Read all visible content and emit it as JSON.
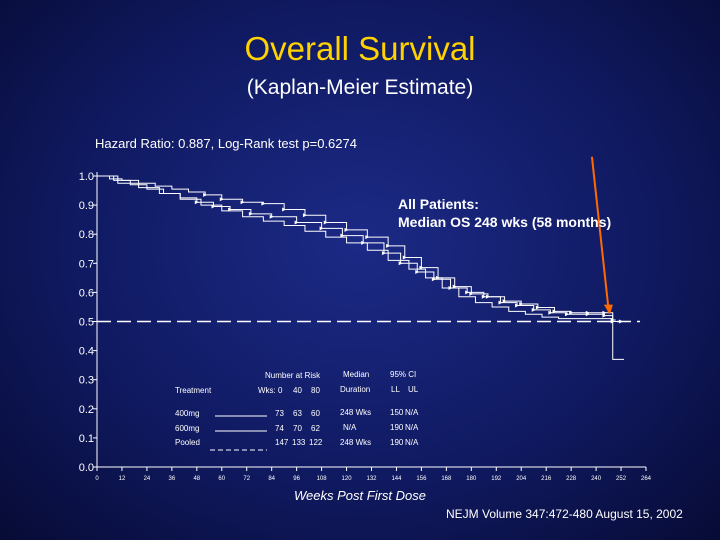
{
  "title": "Overall Survival",
  "subtitle": "(Kaplan-Meier Estimate)",
  "hazard_text": "Hazard Ratio: 0.887, Log-Rank test p=0.6274",
  "annotation": {
    "line1": "All Patients:",
    "line2": "Median OS 248 wks (58 months)"
  },
  "citation": "NEJM Volume 347:472-480 August 15, 2002",
  "colors": {
    "title": "#ffd200",
    "arrow": "#ff6a00",
    "lines": "#ffffff"
  },
  "table": {
    "number_at_risk_label": "Number at Risk",
    "treatment_label": "Treatment",
    "wks_label": "Wks: 0",
    "wks_40": "40",
    "wks_80": "80",
    "median_label": "Median",
    "ci_label": "95% CI",
    "duration_label": "Duration",
    "ll_label": "LL",
    "ul_label": "UL",
    "rows": [
      {
        "name": "400mg",
        "r40": "73",
        "r80": "60",
        "r0": "63",
        "median": "248 Wks",
        "ll": "150",
        "ul": "N/A"
      },
      {
        "name": "600mg",
        "r40": "74",
        "r80": "70",
        "r0": "62",
        "median": "N/A",
        "ll": "190",
        "ul": "N/A"
      },
      {
        "name": "Pooled",
        "r40": "147",
        "r80": "133",
        "r0": "122",
        "median": "248 Wks",
        "ll": "190",
        "ul": "N/A"
      }
    ]
  },
  "chart_data": {
    "type": "line",
    "title": "Overall Survival",
    "xlabel": "Weeks Post First Dose",
    "ylabel": "",
    "xlim": [
      0,
      264
    ],
    "ylim": [
      0,
      1.0
    ],
    "x_ticks": [
      0,
      12,
      24,
      36,
      48,
      60,
      72,
      84,
      96,
      108,
      120,
      132,
      144,
      156,
      168,
      180,
      192,
      204,
      216,
      228,
      240,
      252,
      264
    ],
    "y_ticks": [
      "0.0",
      "0.1",
      "0.2",
      "0.3",
      "0.4",
      "0.5",
      "0.6",
      "0.7",
      "0.8",
      "0.9",
      "1.0"
    ],
    "median_line": 0.5,
    "series": [
      {
        "style": "solid-markers",
        "points": [
          [
            0,
            1.0
          ],
          [
            6,
            0.99
          ],
          [
            12,
            0.985
          ],
          [
            20,
            0.975
          ],
          [
            28,
            0.965
          ],
          [
            36,
            0.955
          ],
          [
            44,
            0.945
          ],
          [
            52,
            0.935
          ],
          [
            60,
            0.92
          ],
          [
            70,
            0.91
          ],
          [
            80,
            0.905
          ],
          [
            90,
            0.885
          ],
          [
            100,
            0.865
          ],
          [
            110,
            0.84
          ],
          [
            120,
            0.815
          ],
          [
            130,
            0.79
          ],
          [
            140,
            0.76
          ],
          [
            148,
            0.72
          ],
          [
            156,
            0.685
          ],
          [
            164,
            0.65
          ],
          [
            172,
            0.62
          ],
          [
            180,
            0.595
          ],
          [
            188,
            0.585
          ],
          [
            196,
            0.57
          ],
          [
            204,
            0.56
          ],
          [
            212,
            0.548
          ],
          [
            220,
            0.535
          ],
          [
            228,
            0.53
          ],
          [
            236,
            0.53
          ],
          [
            244,
            0.53
          ],
          [
            248,
            0.5
          ],
          [
            252,
            0.5
          ]
        ]
      },
      {
        "style": "solid-markers",
        "points": [
          [
            0,
            1.0
          ],
          [
            8,
            0.985
          ],
          [
            16,
            0.97
          ],
          [
            24,
            0.955
          ],
          [
            32,
            0.94
          ],
          [
            40,
            0.925
          ],
          [
            48,
            0.91
          ],
          [
            56,
            0.895
          ],
          [
            64,
            0.885
          ],
          [
            74,
            0.87
          ],
          [
            84,
            0.86
          ],
          [
            96,
            0.84
          ],
          [
            108,
            0.82
          ],
          [
            118,
            0.795
          ],
          [
            128,
            0.77
          ],
          [
            138,
            0.735
          ],
          [
            146,
            0.7
          ],
          [
            154,
            0.67
          ],
          [
            162,
            0.645
          ],
          [
            170,
            0.615
          ],
          [
            178,
            0.6
          ],
          [
            186,
            0.585
          ],
          [
            194,
            0.565
          ],
          [
            202,
            0.555
          ],
          [
            210,
            0.54
          ],
          [
            218,
            0.53
          ],
          [
            226,
            0.525
          ],
          [
            236,
            0.525
          ],
          [
            244,
            0.52
          ],
          [
            248,
            0.505
          ]
        ]
      },
      {
        "style": "solid",
        "points": [
          [
            0,
            1.0
          ],
          [
            10,
            0.975
          ],
          [
            20,
            0.96
          ],
          [
            30,
            0.94
          ],
          [
            40,
            0.92
          ],
          [
            50,
            0.9
          ],
          [
            60,
            0.88
          ],
          [
            70,
            0.86
          ],
          [
            80,
            0.845
          ],
          [
            90,
            0.83
          ],
          [
            100,
            0.81
          ],
          [
            110,
            0.79
          ],
          [
            120,
            0.77
          ],
          [
            130,
            0.745
          ],
          [
            140,
            0.71
          ],
          [
            150,
            0.68
          ],
          [
            158,
            0.65
          ],
          [
            166,
            0.615
          ],
          [
            174,
            0.585
          ],
          [
            182,
            0.565
          ],
          [
            190,
            0.55
          ],
          [
            198,
            0.535
          ],
          [
            206,
            0.525
          ],
          [
            214,
            0.515
          ],
          [
            222,
            0.51
          ],
          [
            232,
            0.51
          ],
          [
            242,
            0.51
          ],
          [
            248,
            0.37
          ],
          [
            252,
            0.37
          ]
        ]
      }
    ],
    "arrow": {
      "from": [
        238,
        0.86
      ],
      "to": [
        250,
        0.51
      ]
    }
  }
}
